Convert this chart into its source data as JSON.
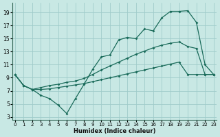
{
  "xlabel": "Humidex (Indice chaleur)",
  "background_color": "#c8e8e4",
  "grid_color": "#a0ccca",
  "line_color": "#1a6b5a",
  "x_ticks": [
    0,
    1,
    2,
    3,
    4,
    5,
    6,
    7,
    8,
    9,
    10,
    11,
    12,
    13,
    14,
    15,
    16,
    17,
    18,
    19,
    20,
    21,
    22,
    23
  ],
  "y_ticks": [
    3,
    5,
    7,
    9,
    11,
    13,
    15,
    17,
    19
  ],
  "ylim": [
    2.5,
    20.5
  ],
  "xlim": [
    -0.3,
    23.3
  ],
  "main_x": [
    0,
    1,
    2,
    3,
    4,
    5,
    6,
    7,
    8,
    9,
    10,
    11,
    12,
    13,
    14,
    15,
    16,
    17,
    18,
    19,
    20,
    21,
    22,
    23
  ],
  "main_y": [
    9.5,
    7.8,
    7.2,
    6.3,
    5.8,
    4.8,
    3.5,
    5.8,
    8.0,
    10.3,
    12.2,
    12.5,
    14.8,
    15.2,
    15.0,
    16.5,
    16.2,
    18.2,
    19.2,
    19.2,
    19.3,
    17.5,
    11.0,
    9.5
  ],
  "upper_x": [
    0,
    1,
    2,
    3,
    4,
    5,
    6,
    7,
    8,
    9,
    10,
    11,
    12,
    13,
    14,
    15,
    16,
    17,
    18,
    19,
    20,
    21,
    22,
    23
  ],
  "upper_y": [
    9.5,
    7.8,
    7.2,
    7.5,
    7.8,
    8.0,
    8.3,
    8.5,
    8.9,
    9.5,
    10.2,
    10.8,
    11.4,
    12.0,
    12.6,
    13.1,
    13.6,
    14.0,
    14.3,
    14.5,
    13.8,
    13.5,
    9.5,
    9.5
  ],
  "lower_x": [
    0,
    1,
    2,
    3,
    4,
    5,
    6,
    7,
    8,
    9,
    10,
    11,
    12,
    13,
    14,
    15,
    16,
    17,
    18,
    19,
    20,
    21,
    22,
    23
  ],
  "lower_y": [
    9.5,
    7.8,
    7.2,
    7.2,
    7.3,
    7.5,
    7.7,
    7.9,
    8.1,
    8.4,
    8.7,
    9.0,
    9.3,
    9.6,
    9.9,
    10.2,
    10.5,
    10.8,
    11.1,
    11.4,
    9.5,
    9.5,
    9.5,
    9.5
  ]
}
